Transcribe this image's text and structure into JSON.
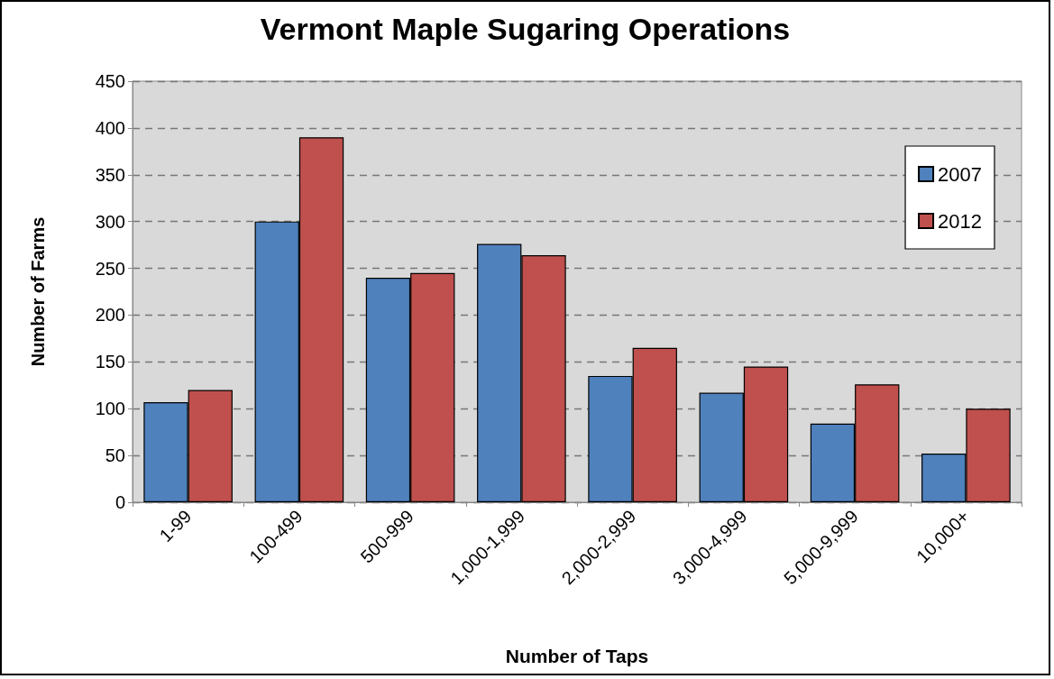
{
  "chart_data": {
    "type": "bar",
    "title": "Vermont Maple Sugaring Operations",
    "xlabel": "Number of Taps",
    "ylabel": "Number of Farms",
    "categories": [
      "1-99",
      "100-499",
      "500-999",
      "1,000-1,999",
      "2,000-2,999",
      "3,000-4,999",
      "5,000-9,999",
      "10,000+"
    ],
    "series": [
      {
        "name": "2007",
        "color": "#4f81bd",
        "values": [
          107,
          300,
          240,
          276,
          135,
          117,
          84,
          52
        ]
      },
      {
        "name": "2012",
        "color": "#c0504d",
        "values": [
          120,
          390,
          245,
          264,
          165,
          145,
          126,
          100
        ]
      }
    ],
    "ylim": [
      0,
      450
    ],
    "yticks": [
      0,
      50,
      100,
      150,
      200,
      250,
      300,
      350,
      400,
      450
    ],
    "grid": "y",
    "legend": "top right"
  }
}
